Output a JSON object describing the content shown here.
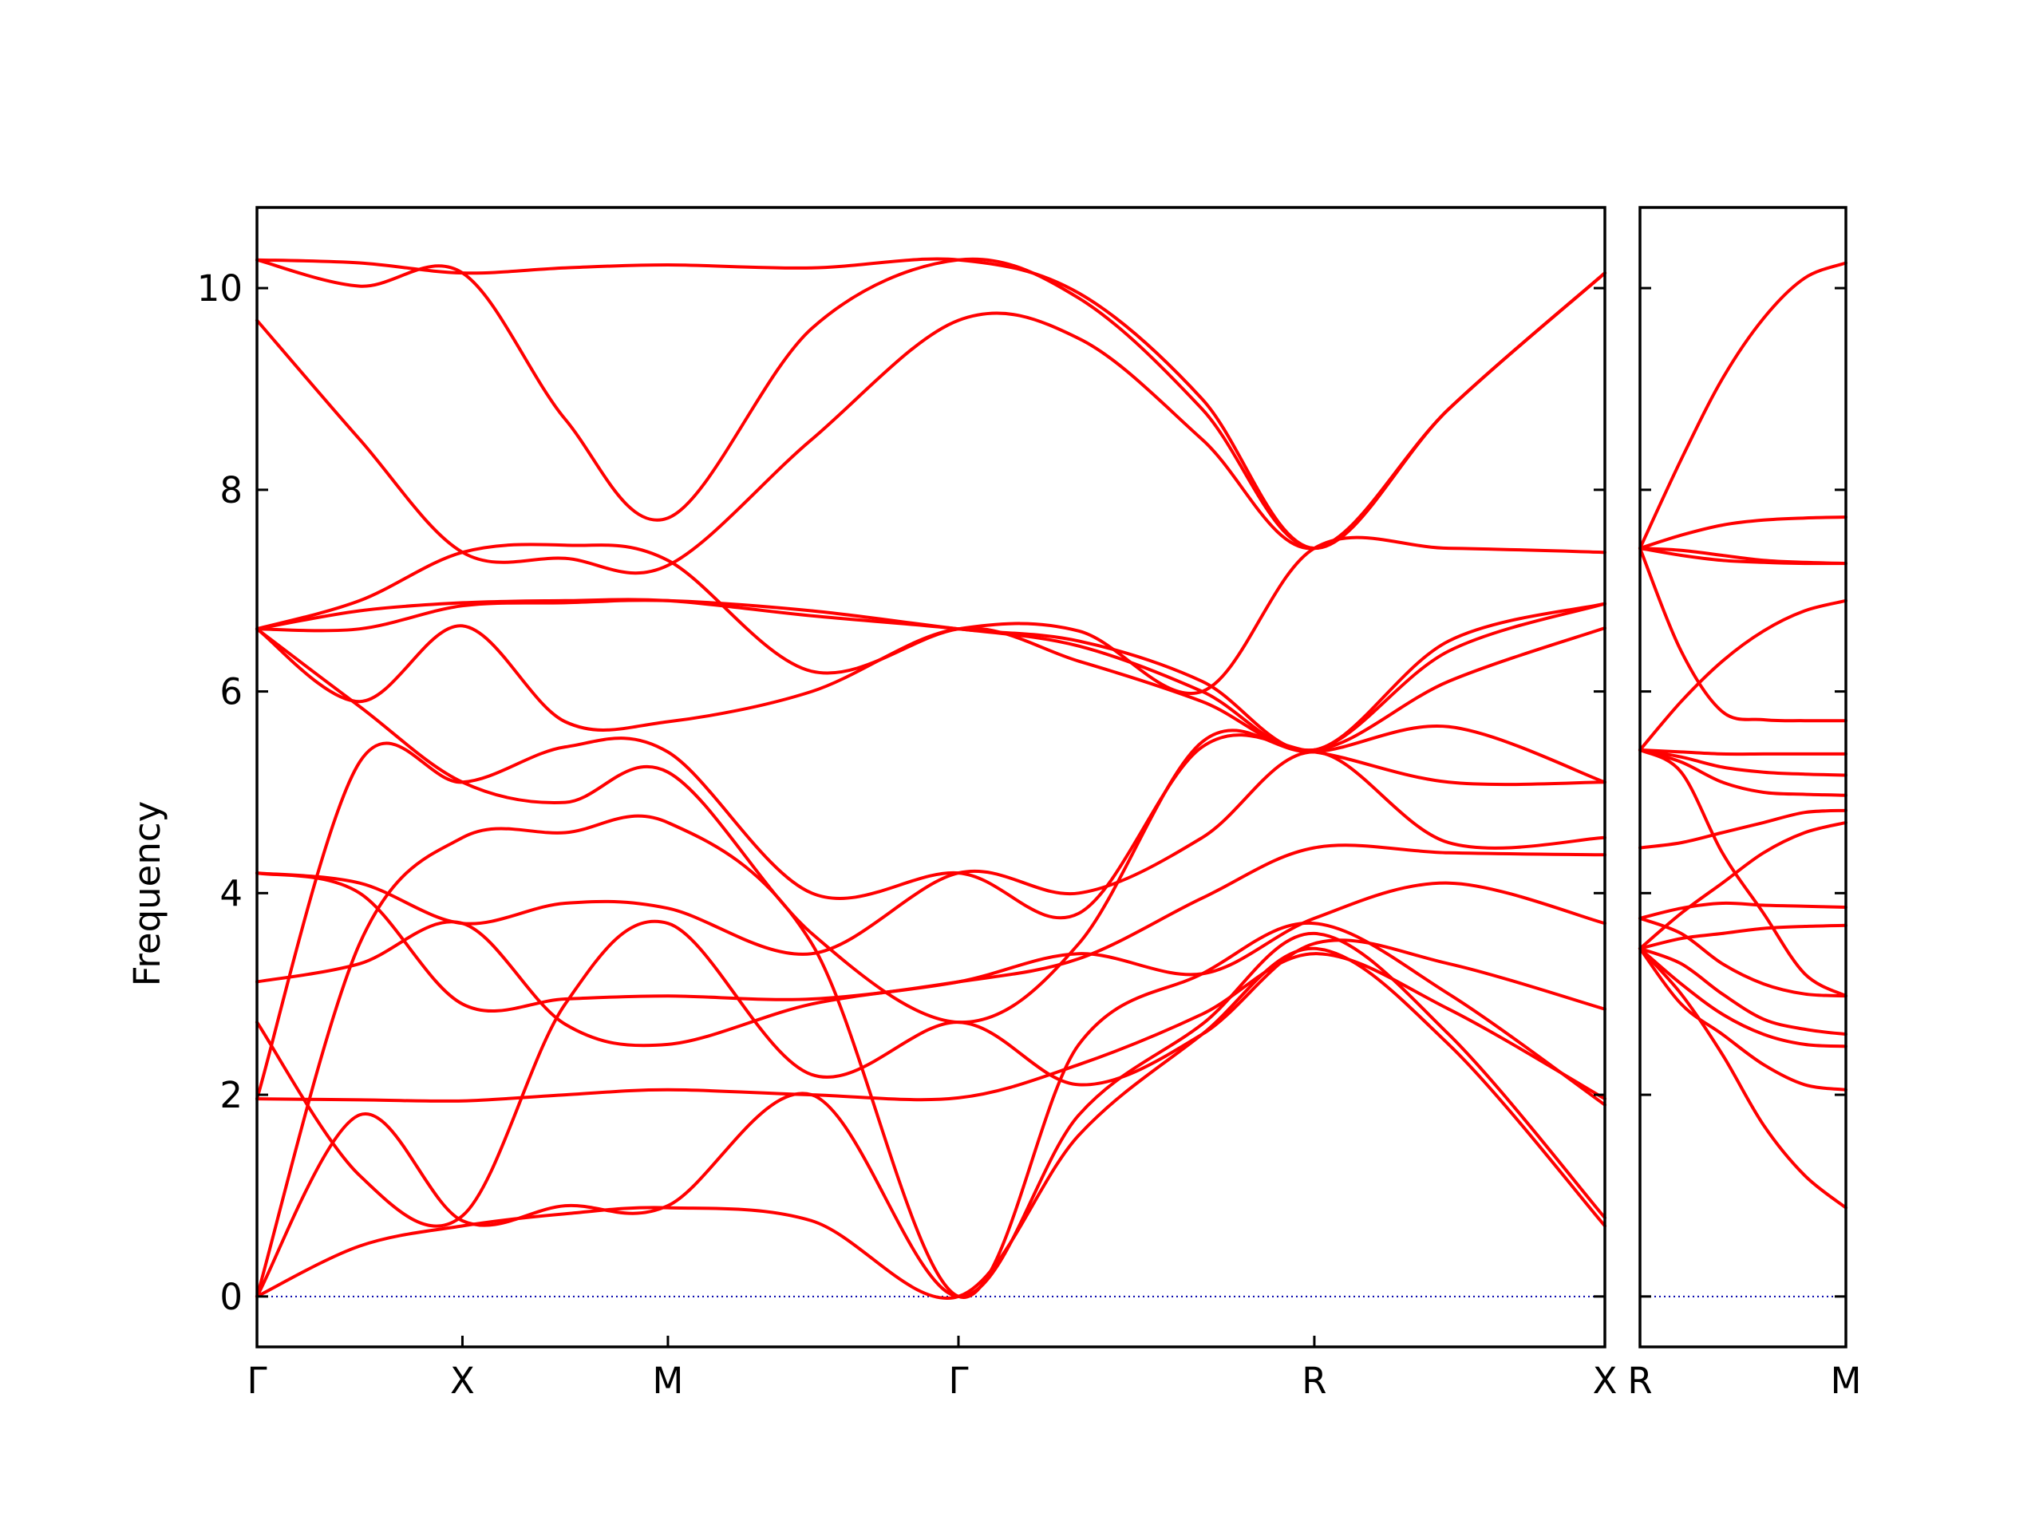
{
  "chart_data": {
    "type": "line",
    "ylabel": "Frequency",
    "ylim": [
      -0.5,
      10.8
    ],
    "yticks": [
      "0",
      "2",
      "4",
      "6",
      "8",
      "10"
    ],
    "grid": false,
    "colors": {
      "bands": "#ff0000",
      "zero_line": "#0000aa",
      "frame": "#000000"
    },
    "panels": [
      {
        "labels": [
          "Γ",
          "X",
          "M",
          "Γ",
          "R",
          "X"
        ],
        "label_positions": [
          0,
          0.5,
          1.0,
          1.707,
          2.573,
          3.28
        ],
        "xlim": [
          0,
          3.28
        ],
        "bands": [
          {
            "x": [
              0,
              0.25,
              0.5,
              0.75,
              1.0,
              1.35,
              1.707,
              2.0,
              2.3,
              2.573,
              2.9,
              3.28
            ],
            "y": [
              0,
              0.5,
              0.7,
              0.82,
              0.88,
              0.75,
              0,
              1.6,
              2.6,
              3.45,
              2.5,
              0.7
            ]
          },
          {
            "x": [
              0,
              0.25,
              0.5,
              0.75,
              1.0,
              1.35,
              1.707,
              2.0,
              2.3,
              2.573,
              2.9,
              3.28
            ],
            "y": [
              0,
              1.8,
              0.75,
              0.9,
              0.9,
              2.0,
              0,
              1.8,
              2.7,
              3.6,
              2.6,
              0.78
            ]
          },
          {
            "x": [
              0,
              0.25,
              0.5,
              0.75,
              1.0,
              1.35,
              1.707,
              2.0,
              2.3,
              2.573,
              2.9,
              3.28
            ],
            "y": [
              0,
              3.5,
              4.55,
              4.6,
              4.7,
              3.5,
              0,
              2.5,
              3.2,
              3.7,
              3.0,
              1.9
            ]
          },
          {
            "x": [
              0,
              0.25,
              0.5,
              0.75,
              1.0,
              1.35,
              1.707,
              2.0,
              2.3,
              2.573,
              2.9,
              3.28
            ],
            "y": [
              1.96,
              1.95,
              1.94,
              2.0,
              2.05,
              2.0,
              1.97,
              2.3,
              2.8,
              3.4,
              2.85,
              1.96
            ]
          },
          {
            "x": [
              0,
              0.25,
              0.5,
              0.75,
              1.0,
              1.35,
              1.707,
              2.0,
              2.3,
              2.573,
              2.9,
              3.28
            ],
            "y": [
              2.72,
              1.2,
              0.8,
              2.9,
              3.7,
              2.2,
              2.72,
              2.1,
              2.6,
              3.5,
              3.3,
              2.85
            ]
          },
          {
            "x": [
              0,
              0.25,
              0.5,
              0.75,
              1.0,
              1.35,
              1.707,
              2.0,
              2.3,
              2.573,
              2.9,
              3.28
            ],
            "y": [
              3.12,
              3.3,
              3.7,
              2.7,
              2.5,
              2.9,
              3.12,
              3.4,
              3.2,
              3.75,
              4.1,
              3.7
            ]
          },
          {
            "x": [
              0,
              0.25,
              0.5,
              0.75,
              1.0,
              1.35,
              1.707,
              2.0,
              2.3,
              2.573,
              2.9,
              3.28
            ],
            "y": [
              4.2,
              4.0,
              2.9,
              2.95,
              2.98,
              2.95,
              3.12,
              3.35,
              3.95,
              4.45,
              4.4,
              4.38
            ]
          },
          {
            "x": [
              0,
              0.25,
              0.5,
              0.75,
              1.0,
              1.35,
              1.707,
              2.0,
              2.3,
              2.573,
              2.9,
              3.28
            ],
            "y": [
              4.2,
              4.1,
              3.7,
              3.9,
              3.85,
              3.4,
              4.2,
              4.0,
              4.55,
              5.4,
              4.5,
              4.55
            ]
          },
          {
            "x": [
              0,
              0.25,
              0.5,
              0.75,
              1.0,
              1.35,
              1.707,
              2.0,
              2.3,
              2.573,
              2.9,
              3.28
            ],
            "y": [
              1.96,
              5.3,
              5.1,
              5.45,
              5.4,
              4.0,
              4.2,
              3.8,
              5.45,
              5.4,
              5.1,
              5.1
            ]
          },
          {
            "x": [
              0,
              0.25,
              0.5,
              0.75,
              1.0,
              1.35,
              1.707,
              2.0,
              2.3,
              2.573,
              2.9,
              3.28
            ],
            "y": [
              6.62,
              5.85,
              5.1,
              4.9,
              5.2,
              3.6,
              2.72,
              3.5,
              5.5,
              5.4,
              5.65,
              5.1
            ]
          },
          {
            "x": [
              0,
              0.25,
              0.5,
              0.75,
              1.0,
              1.35,
              1.707,
              2.0,
              2.3,
              2.573,
              2.9,
              3.28
            ],
            "y": [
              6.62,
              5.9,
              6.65,
              5.7,
              5.7,
              6.0,
              6.62,
              6.3,
              5.9,
              5.42,
              6.1,
              6.63
            ]
          },
          {
            "x": [
              0,
              0.25,
              0.5,
              0.75,
              1.0,
              1.35,
              1.707,
              2.0,
              2.3,
              2.573,
              2.9,
              3.28
            ],
            "y": [
              6.62,
              6.62,
              6.85,
              6.88,
              6.9,
              6.8,
              6.62,
              6.5,
              6.1,
              5.42,
              6.5,
              6.87
            ]
          },
          {
            "x": [
              0,
              0.25,
              0.5,
              0.75,
              1.0,
              1.35,
              1.707,
              2.0,
              2.3,
              2.573,
              2.9,
              3.28
            ],
            "y": [
              6.62,
              6.8,
              6.88,
              6.9,
              6.9,
              6.75,
              6.62,
              6.45,
              6.0,
              5.42,
              6.4,
              6.87
            ]
          },
          {
            "x": [
              0,
              0.25,
              0.5,
              0.75,
              1.0,
              1.35,
              1.707,
              2.0,
              2.3,
              2.573,
              2.9,
              3.28
            ],
            "y": [
              6.62,
              6.9,
              7.38,
              7.45,
              7.3,
              6.2,
              6.62,
              6.6,
              6.0,
              7.42,
              7.42,
              7.38
            ]
          },
          {
            "x": [
              0,
              0.25,
              0.5,
              0.75,
              1.0,
              1.35,
              1.707,
              2.0,
              2.3,
              2.573,
              2.9,
              3.28
            ],
            "y": [
              9.68,
              8.5,
              7.38,
              7.32,
              7.25,
              8.5,
              9.68,
              9.5,
              8.5,
              7.42,
              8.8,
              10.15
            ]
          },
          {
            "x": [
              0,
              0.25,
              0.5,
              0.75,
              1.0,
              1.35,
              1.707,
              2.0,
              2.3,
              2.573,
              2.9,
              3.28
            ],
            "y": [
              10.28,
              10.02,
              10.15,
              8.7,
              7.72,
              9.6,
              10.28,
              9.9,
              8.8,
              7.42,
              8.8,
              10.15
            ]
          },
          {
            "x": [
              0,
              0.25,
              0.5,
              0.75,
              1.0,
              1.35,
              1.707,
              2.0,
              2.3,
              2.573,
              2.9,
              3.28
            ],
            "y": [
              10.28,
              10.25,
              10.15,
              10.2,
              10.23,
              10.2,
              10.28,
              9.95,
              8.9,
              7.42,
              8.8,
              10.15
            ]
          }
        ]
      },
      {
        "labels": [
          "R",
          "M"
        ],
        "label_positions": [
          0,
          0.5
        ],
        "xlim": [
          0,
          0.5
        ],
        "bands": [
          {
            "x": [
              0,
              0.1,
              0.2,
              0.3,
              0.4,
              0.5
            ],
            "y": [
              3.45,
              3.0,
              2.4,
              1.7,
              1.2,
              0.88
            ]
          },
          {
            "x": [
              0,
              0.1,
              0.2,
              0.3,
              0.4,
              0.5
            ],
            "y": [
              3.45,
              2.9,
              2.6,
              2.3,
              2.1,
              2.05
            ]
          },
          {
            "x": [
              0,
              0.1,
              0.2,
              0.3,
              0.4,
              0.5
            ],
            "y": [
              3.45,
              3.1,
              2.8,
              2.6,
              2.5,
              2.48
            ]
          },
          {
            "x": [
              0,
              0.1,
              0.2,
              0.3,
              0.4,
              0.5
            ],
            "y": [
              3.45,
              3.3,
              3.0,
              2.75,
              2.65,
              2.6
            ]
          },
          {
            "x": [
              0,
              0.1,
              0.2,
              0.3,
              0.4,
              0.5
            ],
            "y": [
              3.75,
              3.6,
              3.3,
              3.1,
              3.0,
              2.98
            ]
          },
          {
            "x": [
              0,
              0.1,
              0.2,
              0.3,
              0.4,
              0.5
            ],
            "y": [
              3.45,
              3.55,
              3.6,
              3.65,
              3.67,
              3.68
            ]
          },
          {
            "x": [
              0,
              0.1,
              0.2,
              0.3,
              0.4,
              0.5
            ],
            "y": [
              3.75,
              3.85,
              3.9,
              3.88,
              3.87,
              3.86
            ]
          },
          {
            "x": [
              0,
              0.1,
              0.2,
              0.3,
              0.4,
              0.5
            ],
            "y": [
              3.45,
              3.8,
              4.1,
              4.4,
              4.6,
              4.7
            ]
          },
          {
            "x": [
              0,
              0.1,
              0.2,
              0.3,
              0.4,
              0.5
            ],
            "y": [
              4.45,
              4.5,
              4.6,
              4.7,
              4.8,
              4.82
            ]
          },
          {
            "x": [
              0,
              0.1,
              0.2,
              0.3,
              0.4,
              0.5
            ],
            "y": [
              5.42,
              5.2,
              4.4,
              3.8,
              3.2,
              2.98
            ]
          },
          {
            "x": [
              0,
              0.1,
              0.2,
              0.3,
              0.4,
              0.5
            ],
            "y": [
              5.42,
              5.3,
              5.1,
              5.0,
              4.98,
              4.97
            ]
          },
          {
            "x": [
              0,
              0.1,
              0.2,
              0.3,
              0.4,
              0.5
            ],
            "y": [
              5.42,
              5.35,
              5.25,
              5.2,
              5.18,
              5.17
            ]
          },
          {
            "x": [
              0,
              0.1,
              0.2,
              0.3,
              0.4,
              0.5
            ],
            "y": [
              5.42,
              5.4,
              5.38,
              5.38,
              5.38,
              5.38
            ]
          },
          {
            "x": [
              0,
              0.1,
              0.2,
              0.3,
              0.4,
              0.5
            ],
            "y": [
              5.42,
              5.9,
              6.3,
              6.6,
              6.8,
              6.9
            ]
          },
          {
            "x": [
              0,
              0.1,
              0.2,
              0.3,
              0.4,
              0.5
            ],
            "y": [
              7.42,
              6.4,
              5.8,
              5.72,
              5.71,
              5.71
            ]
          },
          {
            "x": [
              0,
              0.1,
              0.2,
              0.3,
              0.4,
              0.5
            ],
            "y": [
              7.42,
              7.35,
              7.3,
              7.28,
              7.27,
              7.27
            ]
          },
          {
            "x": [
              0,
              0.1,
              0.2,
              0.3,
              0.4,
              0.5
            ],
            "y": [
              7.42,
              7.4,
              7.35,
              7.3,
              7.28,
              7.27
            ]
          },
          {
            "x": [
              0,
              0.1,
              0.2,
              0.3,
              0.4,
              0.5
            ],
            "y": [
              7.42,
              7.55,
              7.65,
              7.7,
              7.72,
              7.73
            ]
          },
          {
            "x": [
              0,
              0.1,
              0.2,
              0.3,
              0.4,
              0.5
            ],
            "y": [
              7.42,
              8.3,
              9.1,
              9.7,
              10.1,
              10.25
            ]
          }
        ]
      }
    ]
  }
}
